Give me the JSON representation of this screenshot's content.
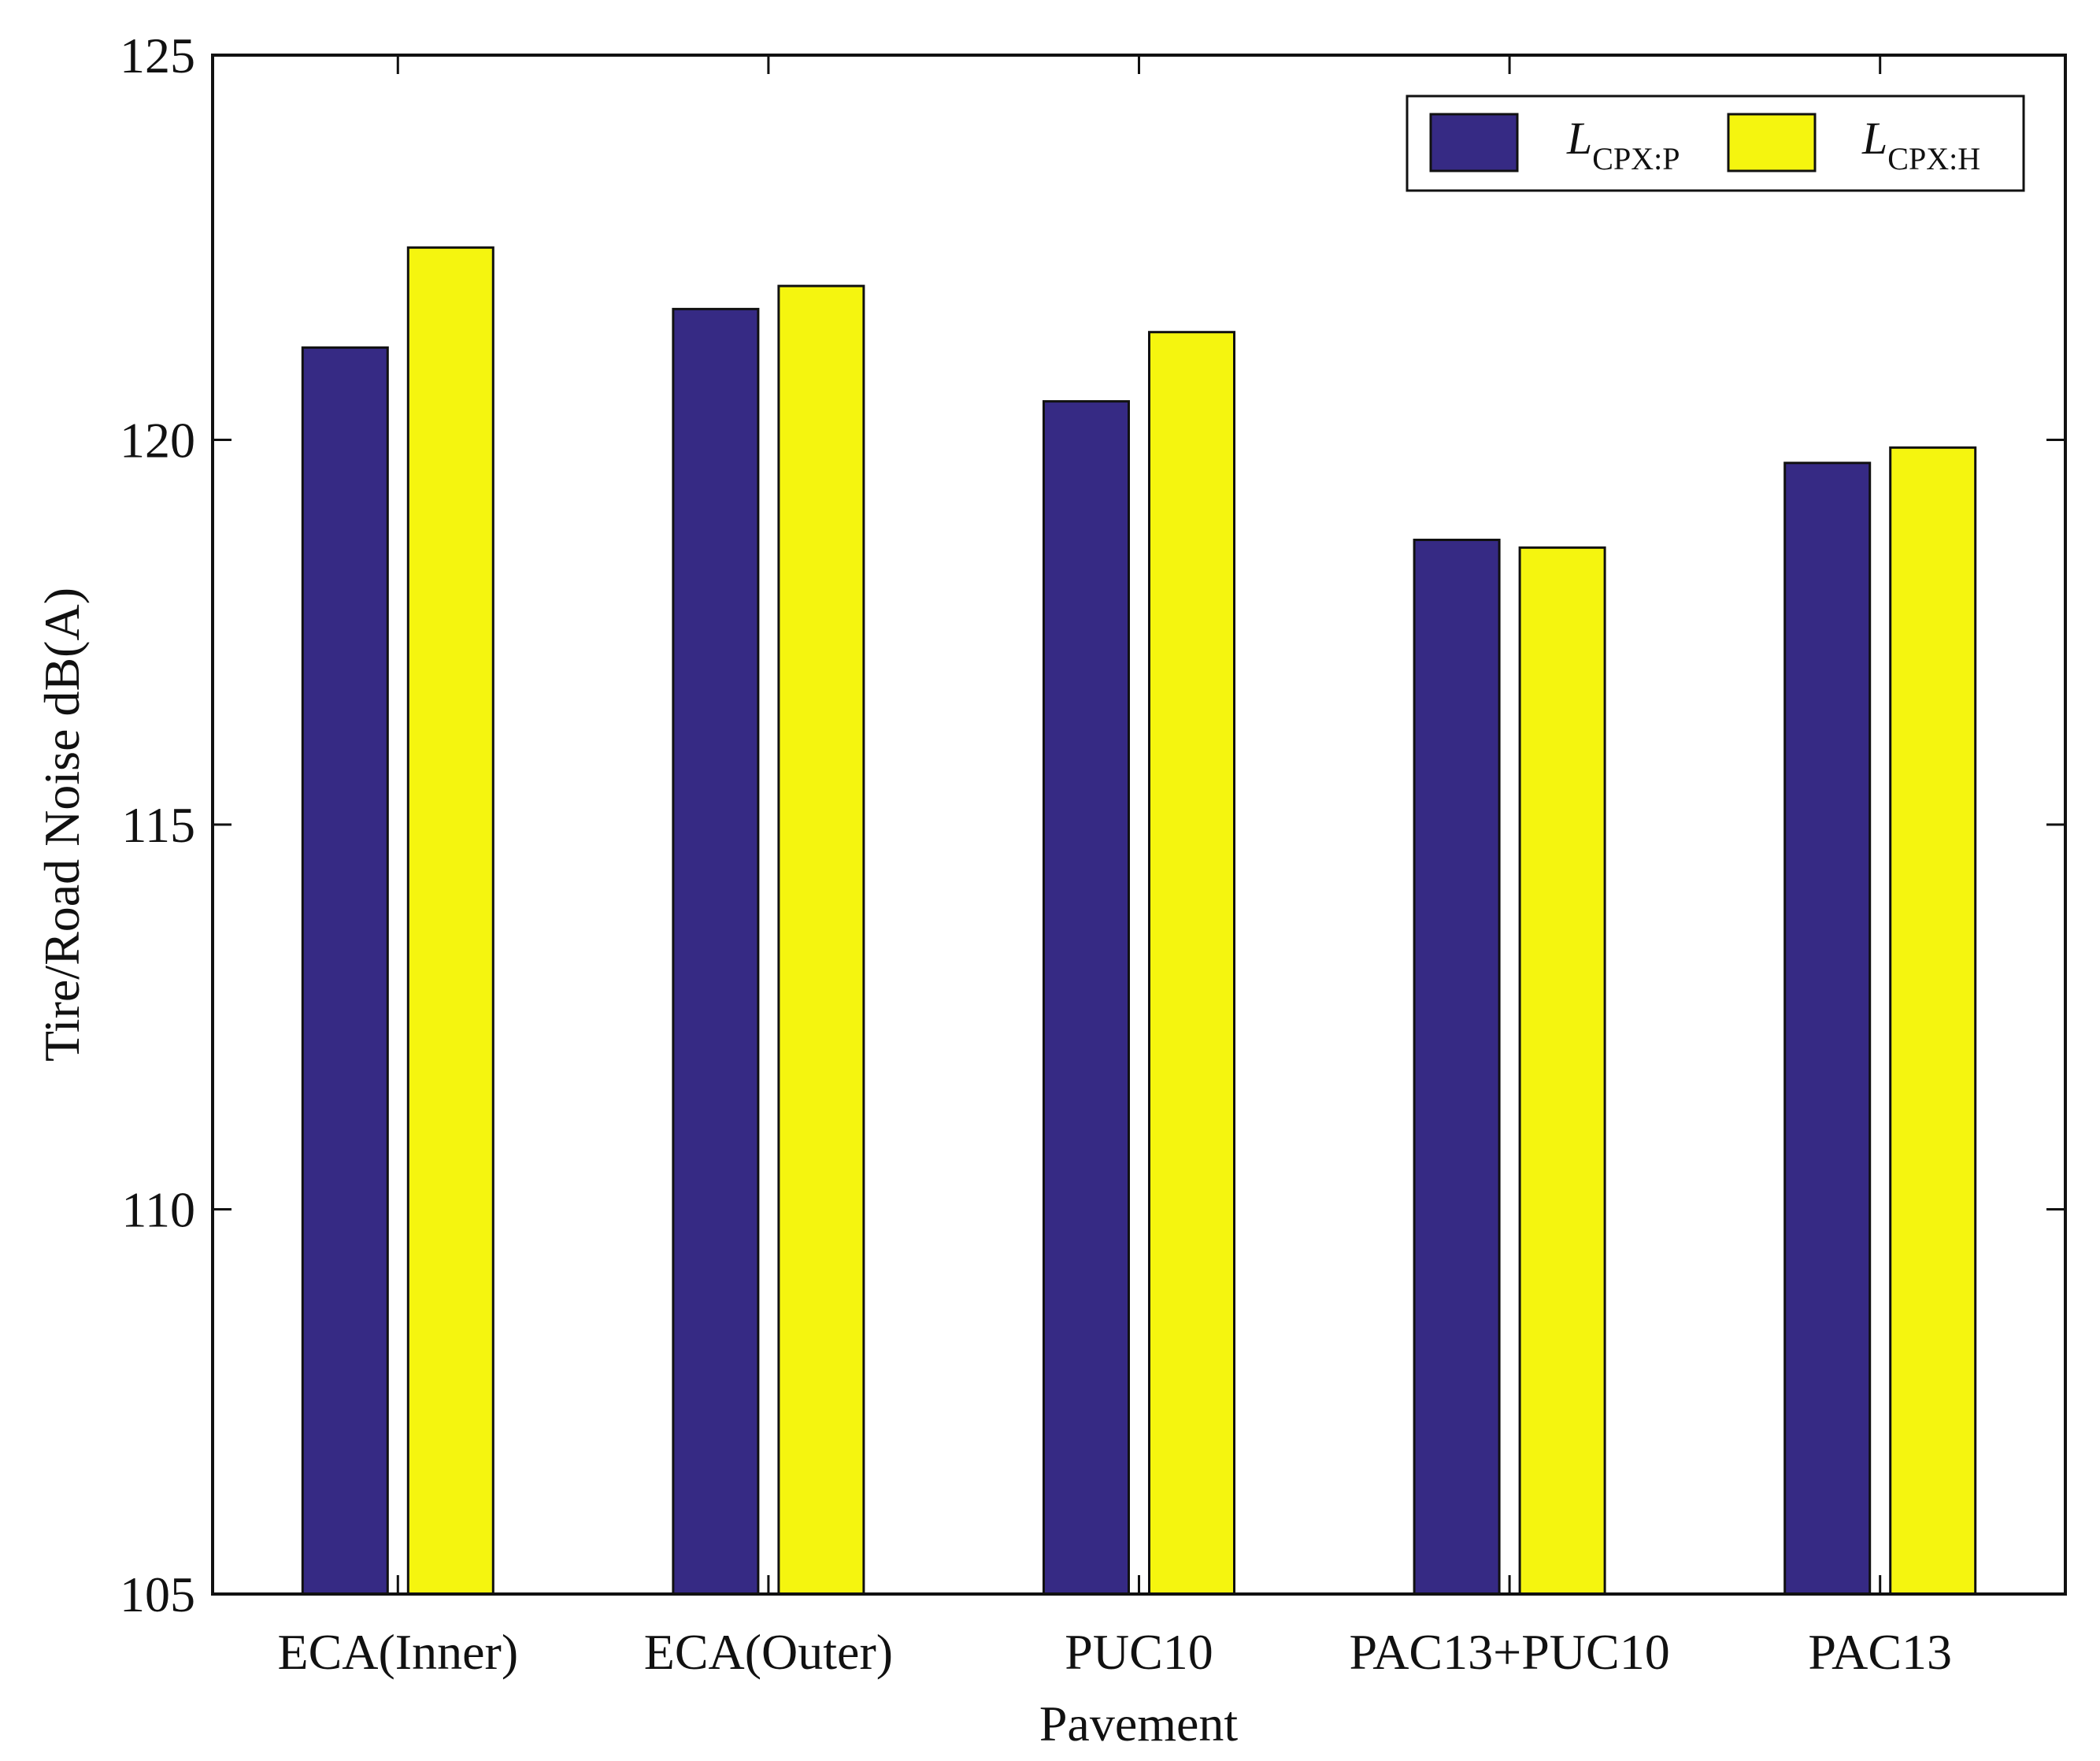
{
  "chart_data": {
    "type": "bar",
    "title": "",
    "xlabel": "Pavement",
    "ylabel": "Tire/Road Noise dB(A)",
    "ylim": [
      105,
      125
    ],
    "yticks": [
      105,
      110,
      115,
      120,
      125
    ],
    "grid": false,
    "legend_position": "top-right",
    "categories": [
      "ECA(Inner)",
      "ECA(Outer)",
      "PUC10",
      "PAC13+PUC10",
      "PAC13"
    ],
    "series": [
      {
        "name": "L",
        "subscript": "CPX:P",
        "color": "#362a84",
        "values": [
          121.2,
          121.7,
          120.5,
          118.7,
          119.7
        ]
      },
      {
        "name": "L",
        "subscript": "CPX:H",
        "color": "#f5f50f",
        "values": [
          122.5,
          122.0,
          121.4,
          118.6,
          119.9
        ]
      }
    ]
  }
}
